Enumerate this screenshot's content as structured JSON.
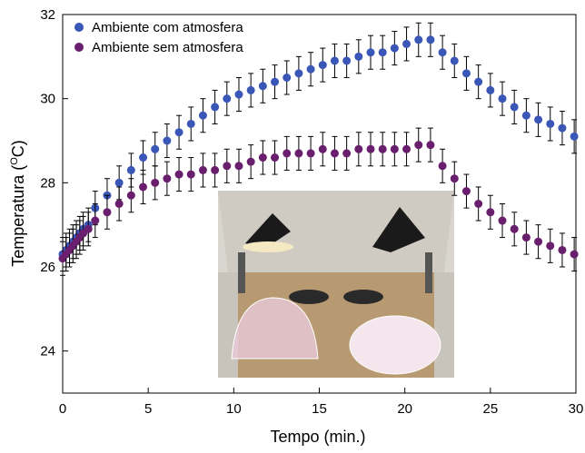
{
  "chart_data": {
    "type": "scatter",
    "x_label": "Tempo (min.)",
    "y_label": {
      "start": "Temperatura (",
      "sup": "O",
      "end": "C)"
    },
    "xlim": [
      0,
      30
    ],
    "ylim": [
      23,
      32
    ],
    "xticks": [
      0,
      5,
      10,
      15,
      20,
      25,
      30
    ],
    "yticks": [
      24,
      26,
      28,
      30,
      32
    ],
    "legend": "upper left",
    "x": [
      0,
      0.2,
      0.4,
      0.6,
      0.8,
      1.0,
      1.2,
      1.5,
      1.9,
      2.6,
      3.3,
      4.0,
      4.7,
      5.4,
      6.1,
      6.8,
      7.5,
      8.2,
      8.9,
      9.6,
      10.3,
      11.0,
      11.7,
      12.4,
      13.1,
      13.8,
      14.5,
      15.2,
      15.9,
      16.6,
      17.3,
      18.0,
      18.7,
      19.4,
      20.1,
      20.8,
      21.5,
      22.2,
      22.9,
      23.6,
      24.3,
      25.0,
      25.7,
      26.4,
      27.1,
      27.8,
      28.5,
      29.2,
      29.9
    ],
    "series": [
      {
        "name": "Ambiente com atmosfera",
        "color": "#3a56b6",
        "error": 0.4,
        "values": [
          26.3,
          26.4,
          26.5,
          26.6,
          26.7,
          26.8,
          26.9,
          27.0,
          27.4,
          27.7,
          28.0,
          28.3,
          28.6,
          28.8,
          29.0,
          29.2,
          29.4,
          29.6,
          29.8,
          30.0,
          30.1,
          30.2,
          30.3,
          30.4,
          30.5,
          30.6,
          30.7,
          30.8,
          30.9,
          30.9,
          31.0,
          31.1,
          31.1,
          31.2,
          31.3,
          31.4,
          31.4,
          31.1,
          30.9,
          30.6,
          30.4,
          30.2,
          30.0,
          29.8,
          29.6,
          29.5,
          29.4,
          29.3,
          29.1
        ]
      },
      {
        "name": "Ambiente sem atmosfera",
        "color": "#6a1e6e",
        "error": 0.4,
        "values": [
          26.2,
          26.3,
          26.4,
          26.5,
          26.6,
          26.7,
          26.8,
          26.9,
          27.1,
          27.3,
          27.5,
          27.7,
          27.9,
          28.0,
          28.1,
          28.2,
          28.2,
          28.3,
          28.3,
          28.4,
          28.4,
          28.5,
          28.6,
          28.6,
          28.7,
          28.7,
          28.7,
          28.8,
          28.7,
          28.7,
          28.8,
          28.8,
          28.8,
          28.8,
          28.8,
          28.9,
          28.9,
          28.4,
          28.1,
          27.8,
          27.5,
          27.3,
          27.1,
          26.9,
          26.7,
          26.6,
          26.5,
          26.4,
          26.3
        ]
      }
    ]
  }
}
